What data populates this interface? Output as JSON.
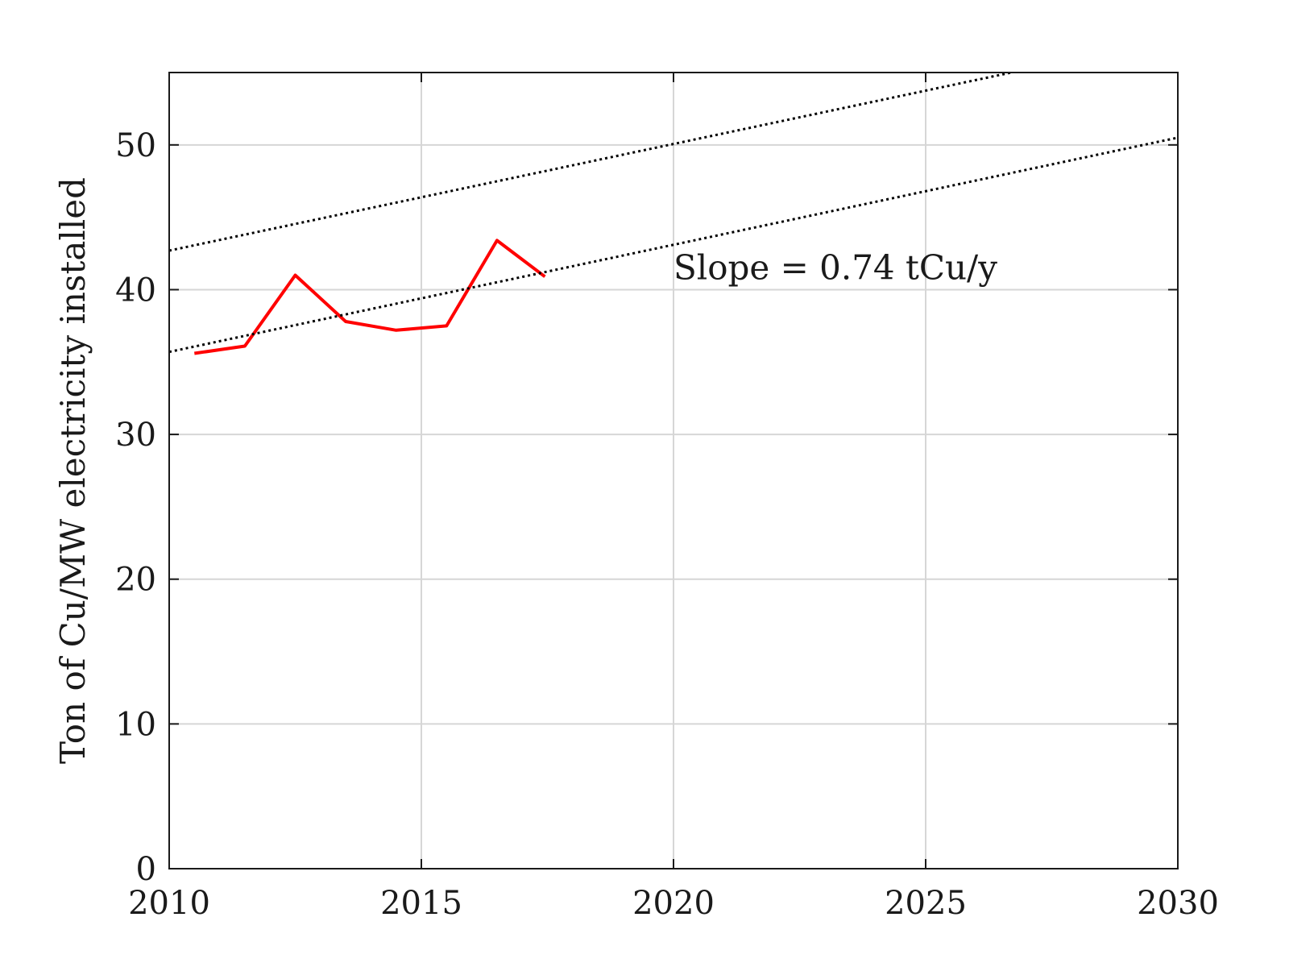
{
  "chart_data": {
    "type": "line",
    "title": "",
    "xlabel": "",
    "ylabel": "Ton of Cu/MW electricity installed",
    "xlim": [
      2010,
      2030
    ],
    "ylim": [
      0,
      55
    ],
    "x_ticks": [
      "2010",
      "2015",
      "2020",
      "2025",
      "2030"
    ],
    "y_ticks": [
      "0",
      "10",
      "20",
      "30",
      "40",
      "50"
    ],
    "grid": true,
    "legend": "none",
    "series": [
      {
        "color": "#ff0000",
        "style": "solid",
        "x": [
          2010.5,
          2011.5,
          2012.5,
          2013.5,
          2014.5,
          2015.5,
          2016.5,
          2017.45
        ],
        "y": [
          35.6,
          36.1,
          41.0,
          37.8,
          37.2,
          37.5,
          43.4,
          40.9
        ]
      },
      {
        "color": "#000000",
        "style": "dotted",
        "x": [
          2010,
          2026.7
        ],
        "y": [
          42.7,
          55
        ]
      },
      {
        "color": "#000000",
        "style": "dotted",
        "x": [
          2010,
          2030
        ],
        "y": [
          35.7,
          50.5
        ]
      }
    ],
    "annotations": [
      {
        "text": "Slope = 0.74 tCu/y",
        "x": 2020,
        "y": 41.5
      }
    ]
  }
}
